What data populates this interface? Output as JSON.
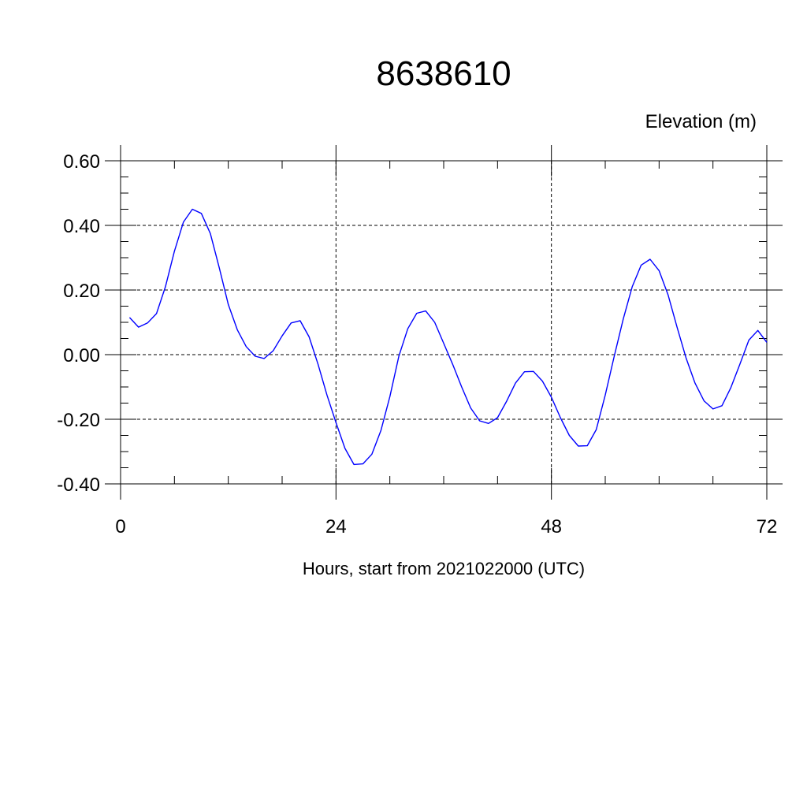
{
  "chart_data": {
    "type": "line",
    "title": "8638610",
    "ylabel": "Elevation (m)",
    "xlabel": "Hours, start from 2021022000 (UTC)",
    "xlim": [
      0,
      72
    ],
    "ylim": [
      -0.4,
      0.6
    ],
    "x_ticks": [
      0,
      24,
      48,
      72
    ],
    "x_tick_labels": [
      "0",
      "24",
      "48",
      "72"
    ],
    "y_ticks": [
      -0.4,
      -0.2,
      0.0,
      0.2,
      0.4,
      0.6
    ],
    "y_tick_labels": [
      "-0.40",
      "-0.20",
      "0.00",
      "0.20",
      "0.40",
      "0.60"
    ],
    "grid": true,
    "line_color": "#0000ff",
    "series": [
      {
        "x": [
          1,
          2,
          3,
          4,
          5,
          6,
          7,
          8,
          9,
          10,
          11,
          12,
          13,
          14,
          15,
          16,
          17,
          18,
          19,
          20,
          21,
          22,
          23,
          24,
          25,
          26,
          27,
          28,
          29,
          30,
          31,
          32,
          33,
          34,
          35,
          36,
          37,
          38,
          39,
          40,
          41,
          42,
          43,
          44,
          45,
          46,
          47,
          48,
          49,
          50,
          51,
          52,
          53,
          54,
          55,
          56,
          57,
          58,
          59,
          60,
          61,
          62,
          63,
          64,
          65,
          66,
          67,
          68,
          69,
          70,
          71,
          72
        ],
        "values": [
          0.115,
          0.085,
          0.098,
          0.127,
          0.21,
          0.32,
          0.41,
          0.45,
          0.437,
          0.375,
          0.268,
          0.155,
          0.077,
          0.025,
          -0.005,
          -0.012,
          0.012,
          0.058,
          0.098,
          0.105,
          0.055,
          -0.03,
          -0.125,
          -0.21,
          -0.29,
          -0.34,
          -0.338,
          -0.308,
          -0.235,
          -0.13,
          -0.005,
          0.08,
          0.128,
          0.135,
          0.1,
          0.035,
          -0.03,
          -0.1,
          -0.165,
          -0.205,
          -0.213,
          -0.195,
          -0.145,
          -0.088,
          -0.053,
          -0.052,
          -0.082,
          -0.132,
          -0.195,
          -0.25,
          -0.283,
          -0.282,
          -0.232,
          -0.125,
          -0.005,
          0.11,
          0.21,
          0.277,
          0.295,
          0.26,
          0.185,
          0.085,
          -0.01,
          -0.088,
          -0.143,
          -0.168,
          -0.158,
          -0.102,
          -0.03,
          0.045,
          0.075,
          0.038
        ]
      }
    ]
  }
}
